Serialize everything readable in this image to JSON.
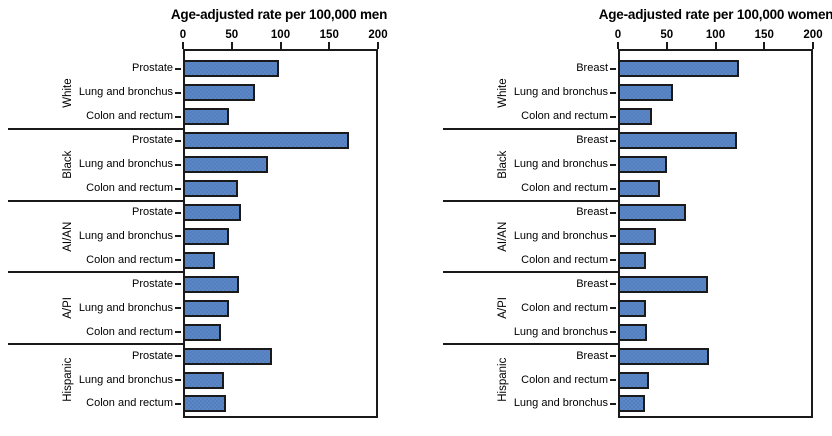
{
  "chart_data": [
    {
      "type": "bar",
      "orientation": "horizontal",
      "title": "Age-adjusted rate per 100,000 men",
      "xlim": [
        0,
        200
      ],
      "xticks": [
        "0",
        "50",
        "100",
        "150",
        "200"
      ],
      "grid": false,
      "bar_color": "#4d7cbe",
      "bar_border_color": "#1a1a1a",
      "groups": [
        {
          "label": "White",
          "bars": [
            {
              "label": "Prostate",
              "value": 96
            },
            {
              "label": "Lung and bronchus",
              "value": 72
            },
            {
              "label": "Colon and rectum",
              "value": 45
            }
          ]
        },
        {
          "label": "Black",
          "bars": [
            {
              "label": "Prostate",
              "value": 168
            },
            {
              "label": "Lung and bronchus",
              "value": 85
            },
            {
              "label": "Colon and rectum",
              "value": 54
            }
          ]
        },
        {
          "label": "AI/AN",
          "bars": [
            {
              "label": "Prostate",
              "value": 57
            },
            {
              "label": "Lung and bronchus",
              "value": 45
            },
            {
              "label": "Colon and rectum",
              "value": 31
            }
          ]
        },
        {
          "label": "A/PI",
          "bars": [
            {
              "label": "Prostate",
              "value": 55
            },
            {
              "label": "Lung and bronchus",
              "value": 45
            },
            {
              "label": "Colon and rectum",
              "value": 37
            }
          ]
        },
        {
          "label": "Hispanic",
          "bars": [
            {
              "label": "Prostate",
              "value": 89
            },
            {
              "label": "Lung and bronchus",
              "value": 40
            },
            {
              "label": "Colon and rectum",
              "value": 42
            }
          ]
        }
      ]
    },
    {
      "type": "bar",
      "orientation": "horizontal",
      "title": "Age-adjusted rate per 100,000 women",
      "xlim": [
        0,
        200
      ],
      "xticks": [
        "0",
        "50",
        "100",
        "150",
        "200"
      ],
      "grid": false,
      "bar_color": "#4d7cbe",
      "bar_border_color": "#1a1a1a",
      "groups": [
        {
          "label": "White",
          "bars": [
            {
              "label": "Breast",
              "value": 122
            },
            {
              "label": "Lung and bronchus",
              "value": 54
            },
            {
              "label": "Colon and rectum",
              "value": 33
            }
          ]
        },
        {
          "label": "Black",
          "bars": [
            {
              "label": "Breast",
              "value": 120
            },
            {
              "label": "Lung and bronchus",
              "value": 48
            },
            {
              "label": "Colon and rectum",
              "value": 41
            }
          ]
        },
        {
          "label": "AI/AN",
          "bars": [
            {
              "label": "Breast",
              "value": 68
            },
            {
              "label": "Lung and bronchus",
              "value": 37
            },
            {
              "label": "Colon and rectum",
              "value": 27
            }
          ]
        },
        {
          "label": "A/PI",
          "bars": [
            {
              "label": "Breast",
              "value": 90
            },
            {
              "label": "Colon and rectum",
              "value": 27
            },
            {
              "label": "Lung and bronchus",
              "value": 28
            }
          ]
        },
        {
          "label": "Hispanic",
          "bars": [
            {
              "label": "Breast",
              "value": 91
            },
            {
              "label": "Colon and rectum",
              "value": 30
            },
            {
              "label": "Lung and bronchus",
              "value": 26
            }
          ]
        }
      ]
    }
  ]
}
